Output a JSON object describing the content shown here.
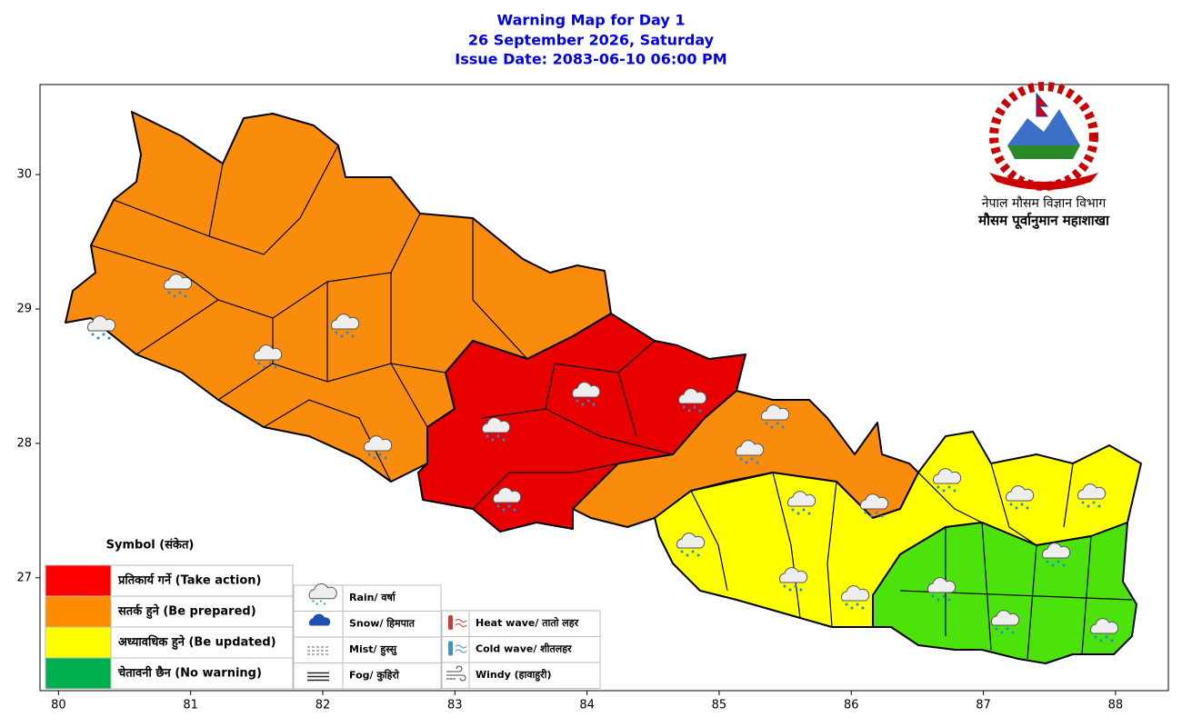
{
  "header": {
    "title_lines": [
      "Warning Map for Day 1",
      "26 September 2026, Saturday",
      "Issue Date: 2083-06-10 06:00 PM"
    ]
  },
  "map": {
    "xlim": [
      79.86,
      88.4
    ],
    "ylim": [
      26.16,
      30.67
    ],
    "xticks": [
      80,
      81,
      82,
      83,
      84,
      85,
      86,
      87,
      88
    ],
    "yticks": [
      27,
      28,
      29,
      30
    ]
  },
  "logo": {
    "lines": [
      "नेपाल मौसम विज्ञान विभाग",
      "मौसम पूर्वानुमान महाशाखा"
    ]
  },
  "legend": {
    "title": "Symbol (संकेत)",
    "levels": [
      {
        "label": "प्रतिकार्य गर्ने (Take action)",
        "color": "#ff0000",
        "map_color": "#e80000"
      },
      {
        "label": "सतर्क हुने (Be prepared)",
        "color": "#ff8c00",
        "map_color": "#fa8c0d"
      },
      {
        "label": "अध्यावधिक हुने (Be updated)",
        "color": "#ffff00",
        "map_color": "#ffff00"
      },
      {
        "label": "चेतावनी छैन (No warning)",
        "color": "#00b050",
        "map_color": "#4ce30c"
      }
    ]
  },
  "symbols": [
    "Rain/ वर्षा",
    "Snow/ हिमपात",
    "Mist/ हुस्सु",
    "Fog/ कुहिरो",
    "Heat wave/ तातो लहर",
    "Cold wave/ शीतलहर",
    "Windy (हावाहुरी)"
  ]
}
